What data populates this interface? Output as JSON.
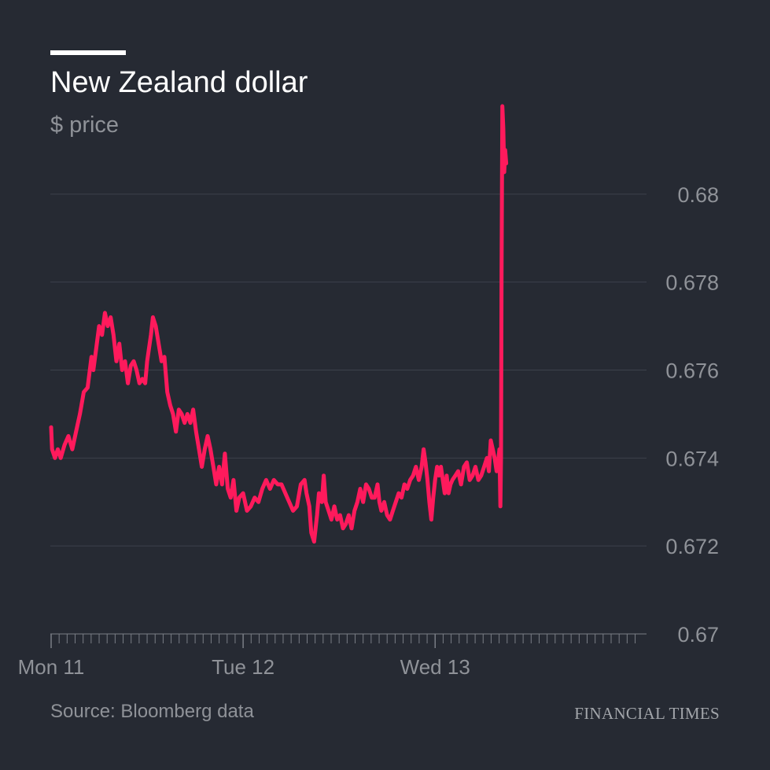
{
  "header": {
    "title": "New Zealand dollar",
    "subtitle": "$ price"
  },
  "footer": {
    "source": "Source: Bloomberg data",
    "brand": "FINANCIAL TIMES"
  },
  "colors": {
    "background": "#262a33",
    "line": "#ff1a5c",
    "grid": "#3d424c",
    "axis": "#7a7e86",
    "muted_text": "#8f9298"
  },
  "chart_data": {
    "type": "line",
    "title": "New Zealand dollar",
    "ylabel": "$ price",
    "xlabel": "",
    "ylim": [
      0.67,
      0.682
    ],
    "yticks": [
      0.67,
      0.672,
      0.674,
      0.676,
      0.678,
      0.68
    ],
    "ytick_labels": [
      "0.67",
      "0.672",
      "0.674",
      "0.676",
      "0.678",
      "0.68"
    ],
    "xlim": [
      0,
      3.06
    ],
    "xticks": [
      0,
      1,
      2
    ],
    "xtick_labels": [
      "Mon 11",
      "Tue 12",
      "Wed 13"
    ],
    "minor_ticks_per_day": 24,
    "grid": true,
    "series": [
      {
        "values": [
          [
            0.0,
            0.6747
          ],
          [
            0.005,
            0.6742
          ],
          [
            0.02,
            0.674
          ],
          [
            0.035,
            0.6742
          ],
          [
            0.05,
            0.674
          ],
          [
            0.07,
            0.6743
          ],
          [
            0.09,
            0.6745
          ],
          [
            0.11,
            0.6742
          ],
          [
            0.13,
            0.6746
          ],
          [
            0.15,
            0.675
          ],
          [
            0.17,
            0.6755
          ],
          [
            0.19,
            0.6756
          ],
          [
            0.21,
            0.6763
          ],
          [
            0.22,
            0.676
          ],
          [
            0.235,
            0.6765
          ],
          [
            0.25,
            0.677
          ],
          [
            0.265,
            0.6768
          ],
          [
            0.28,
            0.6773
          ],
          [
            0.295,
            0.677
          ],
          [
            0.31,
            0.6772
          ],
          [
            0.325,
            0.6768
          ],
          [
            0.34,
            0.6762
          ],
          [
            0.355,
            0.6766
          ],
          [
            0.37,
            0.676
          ],
          [
            0.385,
            0.6762
          ],
          [
            0.4,
            0.6757
          ],
          [
            0.415,
            0.6761
          ],
          [
            0.43,
            0.6762
          ],
          [
            0.445,
            0.676
          ],
          [
            0.46,
            0.6757
          ],
          [
            0.475,
            0.6758
          ],
          [
            0.49,
            0.6757
          ],
          [
            0.5,
            0.6762
          ],
          [
            0.51,
            0.6765
          ],
          [
            0.52,
            0.6768
          ],
          [
            0.53,
            0.6772
          ],
          [
            0.545,
            0.677
          ],
          [
            0.56,
            0.6766
          ],
          [
            0.575,
            0.6762
          ],
          [
            0.59,
            0.6763
          ],
          [
            0.605,
            0.6755
          ],
          [
            0.62,
            0.6752
          ],
          [
            0.635,
            0.675
          ],
          [
            0.65,
            0.6746
          ],
          [
            0.665,
            0.6751
          ],
          [
            0.68,
            0.675
          ],
          [
            0.695,
            0.6748
          ],
          [
            0.71,
            0.675
          ],
          [
            0.725,
            0.6748
          ],
          [
            0.74,
            0.6751
          ],
          [
            0.755,
            0.6746
          ],
          [
            0.77,
            0.6742
          ],
          [
            0.785,
            0.6738
          ],
          [
            0.8,
            0.6742
          ],
          [
            0.815,
            0.6745
          ],
          [
            0.83,
            0.6742
          ],
          [
            0.845,
            0.6738
          ],
          [
            0.86,
            0.6734
          ],
          [
            0.875,
            0.6738
          ],
          [
            0.89,
            0.6734
          ],
          [
            0.905,
            0.6741
          ],
          [
            0.92,
            0.6733
          ],
          [
            0.935,
            0.6731
          ],
          [
            0.95,
            0.6735
          ],
          [
            0.965,
            0.6728
          ],
          [
            0.98,
            0.6731
          ],
          [
            1.0,
            0.6732
          ],
          [
            1.02,
            0.6728
          ],
          [
            1.04,
            0.6729
          ],
          [
            1.06,
            0.6731
          ],
          [
            1.08,
            0.673
          ],
          [
            1.1,
            0.6733
          ],
          [
            1.12,
            0.6735
          ],
          [
            1.14,
            0.6733
          ],
          [
            1.16,
            0.6735
          ],
          [
            1.18,
            0.6734
          ],
          [
            1.2,
            0.6734
          ],
          [
            1.22,
            0.6732
          ],
          [
            1.24,
            0.673
          ],
          [
            1.26,
            0.6728
          ],
          [
            1.28,
            0.6729
          ],
          [
            1.3,
            0.6734
          ],
          [
            1.32,
            0.6735
          ],
          [
            1.33,
            0.6732
          ],
          [
            1.345,
            0.6729
          ],
          [
            1.355,
            0.6723
          ],
          [
            1.37,
            0.6721
          ],
          [
            1.385,
            0.6727
          ],
          [
            1.395,
            0.6732
          ],
          [
            1.41,
            0.673
          ],
          [
            1.42,
            0.6736
          ],
          [
            1.43,
            0.673
          ],
          [
            1.445,
            0.6728
          ],
          [
            1.46,
            0.6726
          ],
          [
            1.475,
            0.6729
          ],
          [
            1.49,
            0.6726
          ],
          [
            1.505,
            0.6727
          ],
          [
            1.52,
            0.6724
          ],
          [
            1.535,
            0.6725
          ],
          [
            1.55,
            0.6727
          ],
          [
            1.565,
            0.6724
          ],
          [
            1.58,
            0.6728
          ],
          [
            1.595,
            0.673
          ],
          [
            1.61,
            0.6733
          ],
          [
            1.625,
            0.673
          ],
          [
            1.64,
            0.6734
          ],
          [
            1.655,
            0.6733
          ],
          [
            1.67,
            0.6731
          ],
          [
            1.685,
            0.6731
          ],
          [
            1.7,
            0.6734
          ],
          [
            1.71,
            0.673
          ],
          [
            1.72,
            0.6728
          ],
          [
            1.735,
            0.673
          ],
          [
            1.75,
            0.6727
          ],
          [
            1.765,
            0.6726
          ],
          [
            1.78,
            0.6728
          ],
          [
            1.795,
            0.673
          ],
          [
            1.81,
            0.6732
          ],
          [
            1.825,
            0.6731
          ],
          [
            1.84,
            0.6734
          ],
          [
            1.855,
            0.6733
          ],
          [
            1.87,
            0.6735
          ],
          [
            1.885,
            0.6736
          ],
          [
            1.9,
            0.6738
          ],
          [
            1.915,
            0.6735
          ],
          [
            1.93,
            0.6738
          ],
          [
            1.94,
            0.6742
          ],
          [
            1.95,
            0.6739
          ],
          [
            1.96,
            0.6735
          ],
          [
            1.97,
            0.673
          ],
          [
            1.98,
            0.6726
          ],
          [
            1.99,
            0.6731
          ],
          [
            2.0,
            0.6735
          ],
          [
            2.01,
            0.6738
          ],
          [
            2.02,
            0.6736
          ],
          [
            2.03,
            0.6738
          ],
          [
            2.04,
            0.6735
          ],
          [
            2.05,
            0.6732
          ],
          [
            2.06,
            0.6736
          ],
          [
            2.07,
            0.6732
          ],
          [
            2.08,
            0.6734
          ],
          [
            2.09,
            0.6735
          ],
          [
            2.105,
            0.6736
          ],
          [
            2.12,
            0.6737
          ],
          [
            2.135,
            0.6734
          ],
          [
            2.15,
            0.6738
          ],
          [
            2.165,
            0.6739
          ],
          [
            2.18,
            0.6735
          ],
          [
            2.195,
            0.6736
          ],
          [
            2.21,
            0.6738
          ],
          [
            2.225,
            0.6735
          ],
          [
            2.24,
            0.6736
          ],
          [
            2.255,
            0.6738
          ],
          [
            2.27,
            0.674
          ],
          [
            2.28,
            0.6737
          ],
          [
            2.29,
            0.6744
          ],
          [
            2.3,
            0.6742
          ],
          [
            2.31,
            0.674
          ],
          [
            2.32,
            0.6737
          ],
          [
            2.33,
            0.674
          ],
          [
            2.335,
            0.6742
          ],
          [
            2.34,
            0.6729
          ],
          [
            2.343,
            0.674
          ],
          [
            2.346,
            0.6782
          ],
          [
            2.35,
            0.682
          ],
          [
            2.355,
            0.6815
          ],
          [
            2.36,
            0.6805
          ],
          [
            2.365,
            0.681
          ],
          [
            2.37,
            0.6807
          ]
        ]
      }
    ]
  }
}
